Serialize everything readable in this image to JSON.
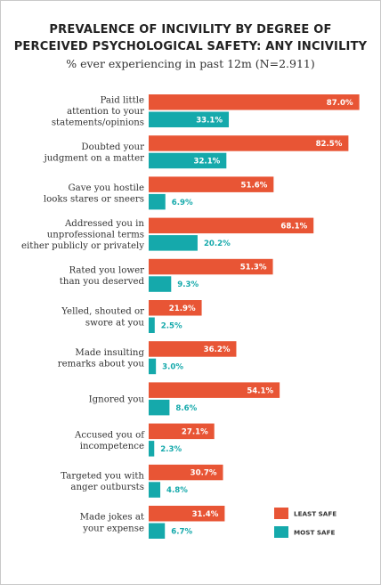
{
  "chart_data": {
    "type": "bar",
    "orientation": "horizontal",
    "title_lines": [
      "PREVALENCE OF INCIVILITY BY DEGREE OF",
      "PERCEIVED PSYCHOLOGICAL SAFETY: ANY INCIVILITY"
    ],
    "subtitle": "% ever experiencing in past 12m (N=2.911)",
    "xlim": [
      0,
      100
    ],
    "grid": false,
    "legend_position": "bottom-right",
    "categories": [
      [
        "Paid little",
        "attention to your",
        "statements/opinions"
      ],
      [
        "Doubted your",
        "judgment on a matter"
      ],
      [
        "Gave you hostile",
        "looks stares or sneers"
      ],
      [
        "Addressed you in",
        "unprofessional terms",
        "either publicly or privately"
      ],
      [
        "Rated you lower",
        "than you deserved"
      ],
      [
        "Yelled, shouted or",
        "swore at you"
      ],
      [
        "Made insulting",
        "remarks about you"
      ],
      [
        "Ignored you"
      ],
      [
        "Accused you of",
        "incompetence"
      ],
      [
        "Targeted you with",
        "anger outbursts"
      ],
      [
        "Made jokes at",
        "your expense"
      ]
    ],
    "series": [
      {
        "name": "LEAST SAFE",
        "color": "#e85535",
        "label_color": "#ffffff",
        "values": [
          87.0,
          82.5,
          51.6,
          68.1,
          51.3,
          21.9,
          36.2,
          54.1,
          27.1,
          30.7,
          31.4
        ],
        "labels": [
          "87.0%",
          "82.5%",
          "51.6%",
          "68.1%",
          "51.3%",
          "21.9%",
          "36.2%",
          "54.1%",
          "27.1%",
          "30.7%",
          "31.4%"
        ]
      },
      {
        "name": "MOST SAFE",
        "color": "#15a9ab",
        "label_color": "#15a9ab",
        "values": [
          33.1,
          32.1,
          6.9,
          20.2,
          9.3,
          2.5,
          3.0,
          8.6,
          2.3,
          4.8,
          6.7
        ],
        "labels": [
          "33.1%",
          "32.1%",
          "6.9%",
          "20.2%",
          "9.3%",
          "2.5%",
          "3.0%",
          "8.6%",
          "2.3%",
          "4.8%",
          "6.7%"
        ]
      }
    ]
  }
}
